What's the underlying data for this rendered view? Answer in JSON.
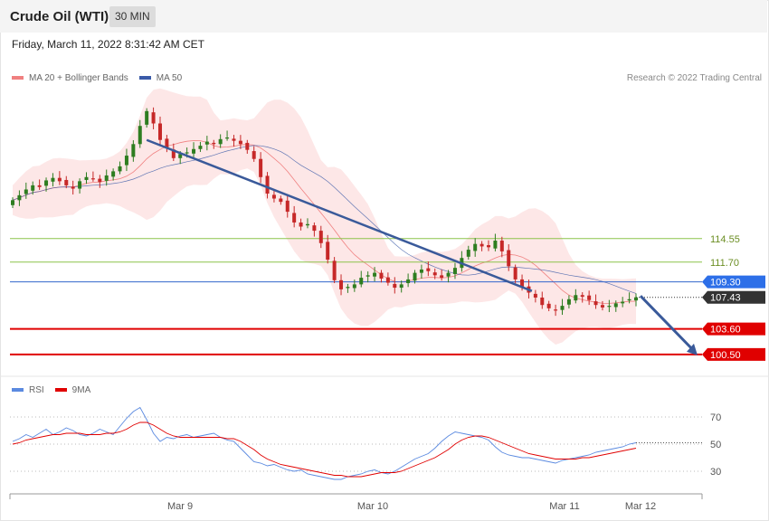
{
  "header": {
    "title": "Crude Oil (WTI)",
    "timeframe": "30 MIN"
  },
  "datetime": "Friday, March 11, 2022 8:31:42 AM CET",
  "legend": {
    "ma_bb": "MA 20 + Bollinger Bands",
    "ma50": "MA 50"
  },
  "copyright": "Research © 2022 Trading Central",
  "colors": {
    "up": "#2e7d20",
    "down": "#c62828",
    "bb_fill": "#fde3e3",
    "ma20": "#f08080",
    "ma50": "#3a5aa8",
    "trend": "#3a5a9a",
    "green_level": "#8bc34a",
    "blue_level": "#3366cc",
    "red_level": "#e00000",
    "rsi": "#5b8ae0",
    "rsi_ma": "#e00000"
  },
  "chart_data": [
    {
      "type": "candlestick",
      "ylim": [
        98.3,
        132.5
      ],
      "x_ticks": [
        "Mar 9",
        "Mar 10",
        "Mar 11",
        "Mar 12"
      ],
      "levels": [
        {
          "value": 114.55,
          "label": "114.55",
          "style": "green"
        },
        {
          "value": 111.7,
          "label": "111.70",
          "style": "green"
        },
        {
          "value": 109.3,
          "label": "109.30",
          "style": "blue"
        },
        {
          "value": 107.43,
          "label": "107.43",
          "style": "current"
        },
        {
          "value": 103.6,
          "label": "103.60",
          "style": "red"
        },
        {
          "value": 100.5,
          "label": "100.50",
          "style": "red"
        }
      ],
      "close_path": [
        119.2,
        119.8,
        120.5,
        121.0,
        120.8,
        121.6,
        121.9,
        121.5,
        121.0,
        120.6,
        121.5,
        122.0,
        121.8,
        121.4,
        122.2,
        122.7,
        123.3,
        124.6,
        126.0,
        128.2,
        130.0,
        128.5,
        126.5,
        125.5,
        124.3,
        124.8,
        125.0,
        125.4,
        125.8,
        126.3,
        126.0,
        126.6,
        126.8,
        126.4,
        126.0,
        125.3,
        124.2,
        122.0,
        120.0,
        119.4,
        119.0,
        117.8,
        116.5,
        116.0,
        116.3,
        115.5,
        114.0,
        112.0,
        109.5,
        108.4,
        108.7,
        109.0,
        109.8,
        110.1,
        110.4,
        109.7,
        109.2,
        108.6,
        109.0,
        109.6,
        110.4,
        110.8,
        110.6,
        110.1,
        109.8,
        110.4,
        111.0,
        112.2,
        113.2,
        113.9,
        113.6,
        113.5,
        114.3,
        113.0,
        111.2,
        109.6,
        108.6,
        108.0,
        107.4,
        106.5,
        106.1,
        105.9,
        106.4,
        107.2,
        107.7,
        107.5,
        107.1,
        106.5,
        106.2,
        106.4,
        106.7,
        106.9,
        107.2,
        107.43
      ],
      "trendline": {
        "from": [
          126.5,
          0.215
        ],
        "to": [
          108.2,
          0.833
        ]
      },
      "projection_arrow": {
        "from": 107.6,
        "to": 100.4
      }
    },
    {
      "type": "line",
      "series": [
        {
          "name": "RSI"
        },
        {
          "name": "9MA"
        }
      ],
      "ylim": [
        20,
        80
      ],
      "y_ticks": [
        70,
        50,
        30
      ],
      "rsi": [
        52,
        54,
        57,
        55,
        58,
        61,
        57,
        59,
        62,
        60,
        57,
        56,
        58,
        61,
        59,
        57,
        63,
        69,
        74,
        77,
        68,
        58,
        52,
        55,
        54,
        56,
        57,
        55,
        56,
        57,
        58,
        55,
        53,
        52,
        47,
        42,
        37,
        36,
        34,
        35,
        33,
        31,
        30,
        31,
        28,
        27,
        26,
        25,
        24,
        24,
        26,
        27,
        28,
        30,
        31,
        29,
        28,
        30,
        33,
        36,
        39,
        41,
        43,
        47,
        52,
        56,
        59,
        58,
        57,
        56,
        55,
        53,
        48,
        44,
        42,
        41,
        40,
        40,
        39,
        38,
        37,
        36,
        38,
        39,
        40,
        41,
        42,
        44,
        45,
        46,
        47,
        48,
        50,
        51
      ],
      "rsi_ma": [
        50,
        51,
        53,
        54,
        55,
        56,
        57,
        57,
        58,
        58,
        58,
        57,
        57,
        57,
        58,
        58,
        59,
        61,
        64,
        66,
        66,
        64,
        61,
        58,
        56,
        55,
        55,
        55,
        55,
        55,
        55,
        55,
        54,
        54,
        52,
        49,
        46,
        42,
        39,
        37,
        35,
        34,
        33,
        32,
        31,
        30,
        29,
        28,
        27,
        27,
        26,
        26,
        26,
        27,
        28,
        29,
        29,
        29,
        30,
        32,
        34,
        36,
        38,
        40,
        43,
        46,
        50,
        53,
        55,
        56,
        56,
        55,
        53,
        51,
        49,
        47,
        45,
        43,
        42,
        41,
        40,
        39,
        39,
        39,
        39,
        40,
        40,
        41,
        42,
        43,
        44,
        45,
        46,
        47
      ]
    }
  ],
  "rsi_panel": {
    "legend_rsi": "RSI",
    "legend_ma": "9MA",
    "tick_70": "70",
    "tick_50": "50",
    "tick_30": "30"
  }
}
